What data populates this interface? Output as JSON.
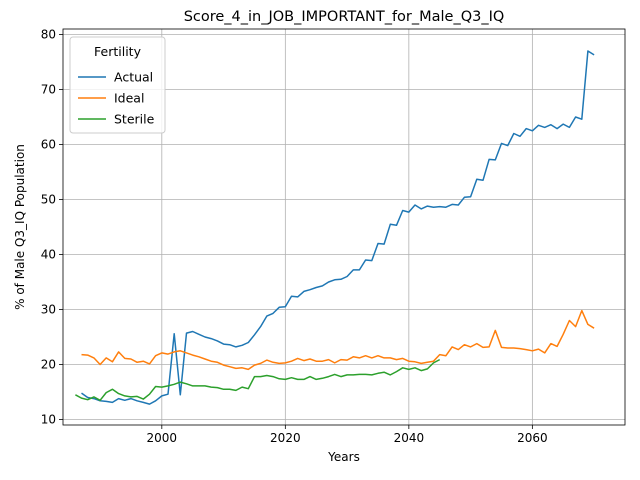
{
  "chart_data": {
    "type": "line",
    "title": "Score_4_in_JOB_IMPORTANT_for_Male_Q3_IQ",
    "xlabel": "Years",
    "ylabel": "% of Male Q3_IQ Population",
    "xlim": [
      1984,
      2075
    ],
    "ylim": [
      9,
      81
    ],
    "xticks": [
      2000,
      2020,
      2040,
      2060
    ],
    "yticks": [
      10,
      20,
      30,
      40,
      50,
      60,
      70,
      80
    ],
    "grid": true,
    "legend": {
      "title": "Fertility",
      "position": "top-left"
    },
    "series": [
      {
        "name": "Actual",
        "color": "#1f77b4",
        "x": [
          1987,
          1988,
          1989,
          1990,
          1991,
          1992,
          1993,
          1994,
          1995,
          1996,
          1997,
          1998,
          1999,
          2000,
          2001,
          2002,
          2003,
          2004,
          2005,
          2006,
          2007,
          2008,
          2009,
          2010,
          2011,
          2012,
          2013,
          2014,
          2015,
          2016,
          2017,
          2018,
          2019,
          2020,
          2021,
          2022,
          2023,
          2024,
          2025,
          2026,
          2027,
          2028,
          2029,
          2030,
          2031,
          2032,
          2033,
          2034,
          2035,
          2036,
          2037,
          2038,
          2039,
          2040,
          2041,
          2042,
          2043,
          2044,
          2045,
          2046,
          2047,
          2048,
          2049,
          2050,
          2051,
          2052,
          2053,
          2054,
          2055,
          2056,
          2057,
          2058,
          2059,
          2060,
          2061,
          2062,
          2063,
          2064,
          2065,
          2066,
          2067,
          2068,
          2069,
          2070
        ],
        "values": [
          14.8,
          14.0,
          13.8,
          13.4,
          13.3,
          13.1,
          13.8,
          13.5,
          13.8,
          13.4,
          13.1,
          12.8,
          13.4,
          14.3,
          14.6,
          25.6,
          14.5,
          25.7,
          26.0,
          25.5,
          25.0,
          24.7,
          24.3,
          23.7,
          23.6,
          23.2,
          23.5,
          24.0,
          25.4,
          26.9,
          28.8,
          29.3,
          30.4,
          30.5,
          32.4,
          32.3,
          33.3,
          33.6,
          34.0,
          34.3,
          35.0,
          35.4,
          35.5,
          36.0,
          37.2,
          37.2,
          39.0,
          38.9,
          42.0,
          41.9,
          45.5,
          45.3,
          48.0,
          47.7,
          49.0,
          48.3,
          48.8,
          48.6,
          48.7,
          48.6,
          49.1,
          49.0,
          50.4,
          50.5,
          53.7,
          53.5,
          57.3,
          57.2,
          60.2,
          59.8,
          62.0,
          61.5,
          62.9,
          62.5,
          63.5,
          63.1,
          63.6,
          62.9,
          63.7,
          63.1,
          65.0,
          64.6,
          77.0,
          76.3
        ]
      },
      {
        "name": "Ideal",
        "color": "#ff7f0e",
        "x": [
          1987,
          1988,
          1989,
          1990,
          1991,
          1992,
          1993,
          1994,
          1995,
          1996,
          1997,
          1998,
          1999,
          2000,
          2001,
          2002,
          2003,
          2004,
          2005,
          2006,
          2007,
          2008,
          2009,
          2010,
          2011,
          2012,
          2013,
          2014,
          2015,
          2016,
          2017,
          2018,
          2019,
          2020,
          2021,
          2022,
          2023,
          2024,
          2025,
          2026,
          2027,
          2028,
          2029,
          2030,
          2031,
          2032,
          2033,
          2034,
          2035,
          2036,
          2037,
          2038,
          2039,
          2040,
          2041,
          2042,
          2043,
          2044,
          2045,
          2046,
          2047,
          2048,
          2049,
          2050,
          2051,
          2052,
          2053,
          2054,
          2055,
          2056,
          2057,
          2058,
          2059,
          2060,
          2061,
          2062,
          2063,
          2064,
          2065,
          2066,
          2067,
          2068,
          2069,
          2070
        ],
        "values": [
          21.8,
          21.7,
          21.2,
          20.0,
          21.2,
          20.5,
          22.3,
          21.1,
          21.0,
          20.4,
          20.6,
          20.1,
          21.6,
          22.1,
          21.9,
          22.3,
          22.5,
          22.1,
          21.7,
          21.4,
          21.0,
          20.6,
          20.4,
          19.9,
          19.6,
          19.3,
          19.4,
          19.1,
          19.9,
          20.2,
          20.8,
          20.4,
          20.2,
          20.3,
          20.6,
          21.1,
          20.7,
          21.0,
          20.6,
          20.6,
          20.9,
          20.3,
          20.9,
          20.8,
          21.4,
          21.2,
          21.6,
          21.2,
          21.6,
          21.2,
          21.2,
          20.9,
          21.1,
          20.6,
          20.5,
          20.2,
          20.4,
          20.6,
          21.8,
          21.6,
          23.2,
          22.7,
          23.6,
          23.2,
          23.8,
          23.1,
          23.2,
          26.2,
          23.1,
          23.0,
          23.0,
          22.9,
          22.7,
          22.5,
          22.8,
          22.1,
          23.8,
          23.3,
          25.5,
          28.0,
          26.9,
          29.8,
          27.3,
          26.6
        ]
      },
      {
        "name": "Sterile",
        "color": "#2ca02c",
        "x": [
          1986,
          1987,
          1988,
          1989,
          1990,
          1991,
          1992,
          1993,
          1994,
          1995,
          1996,
          1997,
          1998,
          1999,
          2000,
          2001,
          2002,
          2003,
          2004,
          2005,
          2006,
          2007,
          2008,
          2009,
          2010,
          2011,
          2012,
          2013,
          2014,
          2015,
          2016,
          2017,
          2018,
          2019,
          2020,
          2021,
          2022,
          2023,
          2024,
          2025,
          2026,
          2027,
          2028,
          2029,
          2030,
          2031,
          2032,
          2033,
          2034,
          2035,
          2036,
          2037,
          2038,
          2039,
          2040,
          2041,
          2042,
          2043,
          2044,
          2045
        ],
        "values": [
          14.5,
          13.9,
          13.6,
          14.1,
          13.5,
          14.9,
          15.5,
          14.7,
          14.3,
          14.1,
          14.2,
          13.7,
          14.6,
          16.0,
          15.9,
          16.1,
          16.4,
          16.8,
          16.5,
          16.1,
          16.1,
          16.1,
          15.9,
          15.8,
          15.5,
          15.5,
          15.3,
          15.9,
          15.6,
          17.8,
          17.8,
          18.0,
          17.8,
          17.4,
          17.3,
          17.6,
          17.3,
          17.3,
          17.8,
          17.3,
          17.5,
          17.8,
          18.2,
          17.8,
          18.1,
          18.1,
          18.2,
          18.2,
          18.1,
          18.4,
          18.6,
          18.1,
          18.7,
          19.4,
          19.1,
          19.4,
          18.9,
          19.2,
          20.3,
          20.9
        ]
      }
    ]
  }
}
